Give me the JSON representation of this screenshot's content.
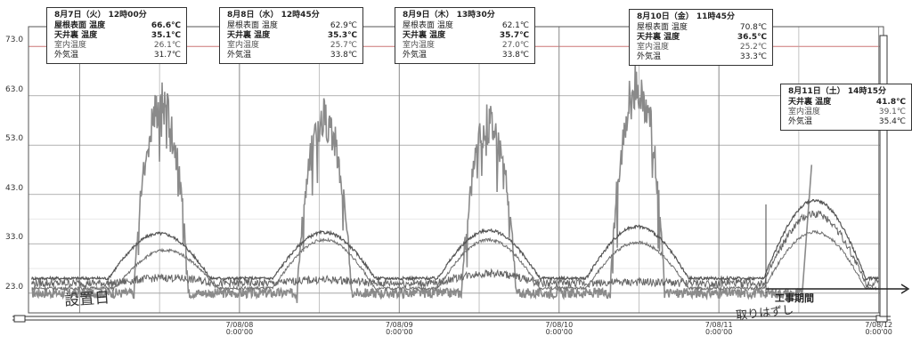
{
  "chart_data": {
    "type": "line",
    "y_ticks": [
      "73.0",
      "63.0",
      "53.0",
      "43.0",
      "33.0",
      "23.0"
    ],
    "ylim": [
      19,
      77
    ],
    "x_ticks": [
      {
        "date": "7/08/08",
        "time": "0:00'00",
        "day": 1
      },
      {
        "date": "7/08/09",
        "time": "0:00'00",
        "day": 2
      },
      {
        "date": "7/08/10",
        "time": "0:00'00",
        "day": 3
      },
      {
        "date": "7/08/11",
        "time": "0:00'00",
        "day": 4
      },
      {
        "date": "7/08/12",
        "time": "0:00'00",
        "day": 5
      }
    ],
    "xlim": [
      -0.32,
      5.03
    ],
    "ref_line": 73.0,
    "series": [
      {
        "name": "屋根表面 温度",
        "color": "#8a8a8a",
        "width": 1.6,
        "peaks": [
          [
            0.51,
            66.6
          ],
          [
            1.53,
            62.9
          ],
          [
            2.56,
            62.1
          ],
          [
            3.49,
            70.8
          ]
        ]
      },
      {
        "name": "天井裏 温度",
        "color": "#555",
        "width": 1.2,
        "peaks": [
          [
            0.5,
            35.1
          ],
          [
            1.53,
            35.3
          ],
          [
            2.56,
            35.7
          ],
          [
            3.49,
            36.5
          ],
          [
            4.6,
            41.8
          ]
        ]
      },
      {
        "name": "室内温度",
        "color": "#666",
        "width": 1.0,
        "peaks": [
          [
            0.54,
            26.1
          ],
          [
            1.53,
            25.7
          ],
          [
            2.56,
            27.0
          ],
          [
            3.49,
            25.2
          ],
          [
            4.6,
            39.1
          ]
        ]
      },
      {
        "name": "外気温",
        "color": "#6f6f6f",
        "width": 1.0,
        "peaks": [
          [
            0.54,
            31.7
          ],
          [
            1.53,
            33.8
          ],
          [
            2.56,
            33.8
          ],
          [
            3.49,
            33.3
          ],
          [
            4.6,
            35.4
          ]
        ]
      }
    ]
  },
  "annotations": [
    {
      "header": "8月7日（火） 12時00分",
      "rows": [
        {
          "label": "屋根表面 温度",
          "value": "66.6℃",
          "style": "b"
        },
        {
          "label": "天井裏 温度",
          "value": "35.1℃",
          "style": "b"
        },
        {
          "label": "室内温度",
          "value": "26.1℃",
          "style": "l"
        },
        {
          "label": "外気温",
          "value": "31.7℃",
          "style": ""
        }
      ]
    },
    {
      "header": "8月8日（水） 12時45分",
      "rows": [
        {
          "label": "屋根表面 温度",
          "value": "62.9℃",
          "style": ""
        },
        {
          "label": "天井裏 温度",
          "value": "35.3℃",
          "style": "b"
        },
        {
          "label": "室内温度",
          "value": "25.7℃",
          "style": "l"
        },
        {
          "label": "外気温",
          "value": "33.8℃",
          "style": ""
        }
      ]
    },
    {
      "header": "8月9日（木） 13時30分",
      "rows": [
        {
          "label": "屋根表面 温度",
          "value": "62.1℃",
          "style": ""
        },
        {
          "label": "天井裏 温度",
          "value": "35.7℃",
          "style": "b"
        },
        {
          "label": "室内温度",
          "value": "27.0℃",
          "style": "l"
        },
        {
          "label": "外気温",
          "value": "33.8℃",
          "style": ""
        }
      ]
    },
    {
      "header": "8月10日（金） 11時45分",
      "rows": [
        {
          "label": "屋根表面 温度",
          "value": "70.8℃",
          "style": ""
        },
        {
          "label": "天井裏 温度",
          "value": "36.5℃",
          "style": "b"
        },
        {
          "label": "室内温度",
          "value": "25.2℃",
          "style": "l"
        },
        {
          "label": "外気温",
          "value": "33.3℃",
          "style": ""
        }
      ]
    },
    {
      "header": "8月11日（土） 14時15分",
      "rows": [
        {
          "label": "天井裏 温度",
          "value": "41.8℃",
          "style": "b"
        },
        {
          "label": "室内温度",
          "value": "39.1℃",
          "style": "l"
        },
        {
          "label": "外気温",
          "value": "35.4℃",
          "style": ""
        }
      ]
    }
  ],
  "handwriting": {
    "start": "設置日",
    "removed": "取りはずし"
  },
  "construction_label": "工事期間",
  "scroll": {
    "left": "◂",
    "right": "▸"
  }
}
